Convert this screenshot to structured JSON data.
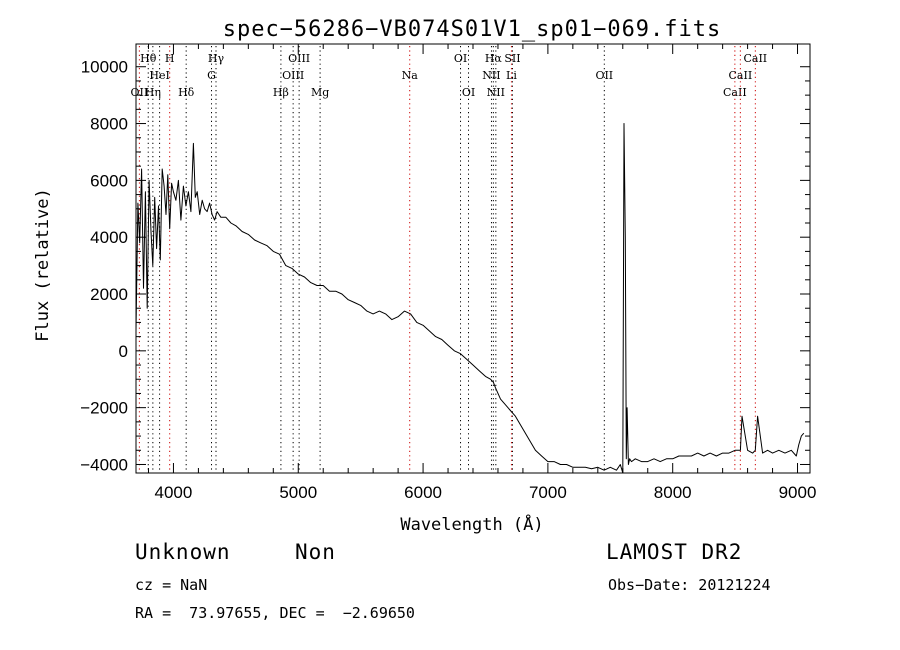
{
  "chart_data": {
    "type": "line",
    "title": "spec−56286−VB074S01V1_sp01−069.fits",
    "xlabel": "Wavelength (Å)",
    "ylabel": "Flux (relative)",
    "xlim": [
      3700,
      9100
    ],
    "ylim": [
      -4300,
      10800
    ],
    "xticks": [
      4000,
      5000,
      6000,
      7000,
      8000,
      9000
    ],
    "xtick_labels": [
      "4000",
      "5000",
      "6000",
      "7000",
      "8000",
      "9000"
    ],
    "yticks": [
      -4000,
      -2000,
      0,
      2000,
      4000,
      6000,
      8000,
      10000
    ],
    "ytick_labels": [
      "−4000",
      "−2000",
      "0",
      "2000",
      "4000",
      "6000",
      "8000",
      "10000"
    ],
    "grid": false,
    "line_color": "#000000",
    "marker_color": "#cc0000",
    "series": [
      {
        "x": [
          3700,
          3715,
          3730,
          3745,
          3760,
          3775,
          3790,
          3805,
          3820,
          3835,
          3850,
          3865,
          3880,
          3895,
          3910,
          3925,
          3940,
          3955,
          3970,
          3985,
          4000,
          4020,
          4040,
          4060,
          4080,
          4100,
          4120,
          4140,
          4160,
          4175,
          4190,
          4210,
          4230,
          4250,
          4270,
          4290,
          4310,
          4330,
          4350,
          4380,
          4420,
          4460,
          4500,
          4550,
          4600,
          4650,
          4700,
          4750,
          4800,
          4850,
          4900,
          4950,
          5000,
          5050,
          5100,
          5150,
          5200,
          5250,
          5300,
          5350,
          5400,
          5450,
          5500,
          5550,
          5600,
          5650,
          5700,
          5750,
          5800,
          5850,
          5900,
          5950,
          6000,
          6050,
          6100,
          6150,
          6200,
          6250,
          6300,
          6350,
          6400,
          6450,
          6500,
          6540,
          6563,
          6580,
          6620,
          6660,
          6700,
          6740,
          6780,
          6820,
          6860,
          6900,
          6950,
          7000,
          7050,
          7100,
          7150,
          7200,
          7250,
          7300,
          7350,
          7400,
          7450,
          7500,
          7550,
          7580,
          7600,
          7610,
          7620,
          7628,
          7635,
          7645,
          7655,
          7670,
          7700,
          7750,
          7800,
          7850,
          7900,
          7950,
          8000,
          8050,
          8100,
          8150,
          8200,
          8250,
          8300,
          8350,
          8400,
          8450,
          8500,
          8530,
          8542,
          8555,
          8600,
          8640,
          8662,
          8680,
          8720,
          8760,
          8800,
          8850,
          8900,
          8950,
          8990,
          9010,
          9030,
          9050
        ],
        "y": [
          700,
          5200,
          3800,
          6400,
          2200,
          5600,
          1500,
          6000,
          4200,
          3000,
          5400,
          3600,
          5100,
          3200,
          6400,
          5800,
          4800,
          6200,
          4300,
          5900,
          5600,
          5300,
          6000,
          4600,
          5800,
          5100,
          5600,
          4900,
          7300,
          5400,
          5600,
          4800,
          5300,
          5000,
          4900,
          5200,
          4800,
          4600,
          4900,
          4700,
          4700,
          4500,
          4400,
          4200,
          4100,
          3900,
          3800,
          3700,
          3500,
          3400,
          3000,
          2900,
          2700,
          2600,
          2400,
          2300,
          2300,
          2100,
          2100,
          2000,
          1800,
          1700,
          1600,
          1400,
          1300,
          1400,
          1300,
          1100,
          1200,
          1400,
          1300,
          1000,
          900,
          700,
          500,
          400,
          200,
          0,
          -100,
          -300,
          -500,
          -700,
          -900,
          -1000,
          -1100,
          -1300,
          -1700,
          -1900,
          -2100,
          -2300,
          -2600,
          -2900,
          -3200,
          -3500,
          -3700,
          -3900,
          -3900,
          -4000,
          -4000,
          -4100,
          -4100,
          -4100,
          -4150,
          -4100,
          -4200,
          -4100,
          -4200,
          -4000,
          -4300,
          8000,
          4000,
          -3800,
          -2000,
          -4000,
          -3800,
          -3900,
          -3800,
          -3900,
          -3900,
          -3800,
          -3900,
          -3800,
          -3800,
          -3700,
          -3700,
          -3700,
          -3600,
          -3700,
          -3600,
          -3700,
          -3600,
          -3600,
          -3500,
          -3500,
          -3500,
          -2300,
          -3500,
          -3600,
          -3500,
          -2300,
          -3600,
          -3500,
          -3600,
          -3500,
          -3600,
          -3500,
          -3700,
          -3300,
          -3000,
          -2900
        ]
      }
    ],
    "lines": [
      {
        "wavelength": 3727,
        "label": "OII",
        "row": 3,
        "color": "#cc0000"
      },
      {
        "wavelength": 3798,
        "label": "Hθ",
        "row": 1,
        "color": "#000000"
      },
      {
        "wavelength": 3835,
        "label": "Hη",
        "row": 3,
        "color": "#000000"
      },
      {
        "wavelength": 3889,
        "label": "HeI",
        "row": 2,
        "color": "#000000"
      },
      {
        "wavelength": 3970,
        "label": "H",
        "row": 1,
        "color": "#cc0000"
      },
      {
        "wavelength": 4102,
        "label": "Hδ",
        "row": 3,
        "color": "#000000"
      },
      {
        "wavelength": 4305,
        "label": "G",
        "row": 2,
        "color": "#000000"
      },
      {
        "wavelength": 4341,
        "label": "Hγ",
        "row": 1,
        "color": "#000000"
      },
      {
        "wavelength": 4861,
        "label": "Hβ",
        "row": 3,
        "color": "#000000"
      },
      {
        "wavelength": 4959,
        "label": "OIII",
        "row": 2,
        "color": "#000000"
      },
      {
        "wavelength": 5007,
        "label": "OIII",
        "row": 1,
        "color": "#000000"
      },
      {
        "wavelength": 5175,
        "label": "Mg",
        "row": 3,
        "color": "#000000"
      },
      {
        "wavelength": 5893,
        "label": "Na",
        "row": 2,
        "color": "#cc0000"
      },
      {
        "wavelength": 6300,
        "label": "OI",
        "row": 1,
        "color": "#000000"
      },
      {
        "wavelength": 6364,
        "label": "OI",
        "row": 3,
        "color": "#000000"
      },
      {
        "wavelength": 6548,
        "label": "NII",
        "row": 2,
        "color": "#000000"
      },
      {
        "wavelength": 6563,
        "label": "Hα",
        "row": 1,
        "color": "#000000"
      },
      {
        "wavelength": 6583,
        "label": "NII",
        "row": 3,
        "color": "#000000"
      },
      {
        "wavelength": 6716,
        "label": "SII",
        "row": 1,
        "color": "#000000"
      },
      {
        "wavelength": 6708,
        "label": "Li",
        "row": 2,
        "color": "#cc0000"
      },
      {
        "wavelength": 7452,
        "label": "OII",
        "row": 2,
        "color": "#000000"
      },
      {
        "wavelength": 8498,
        "label": "CaII",
        "row": 3,
        "color": "#cc0000"
      },
      {
        "wavelength": 8542,
        "label": "CaII",
        "row": 2,
        "color": "#cc0000"
      },
      {
        "wavelength": 8662,
        "label": "CaII",
        "row": 1,
        "color": "#cc0000"
      }
    ]
  },
  "info": {
    "class": "Unknown",
    "subclass": "Non",
    "survey": "LAMOST DR2",
    "cz": "cz = NaN",
    "obs_date": "Obs−Date: 20121224",
    "coords": "RA =  73.97655, DEC =  −2.69650"
  }
}
